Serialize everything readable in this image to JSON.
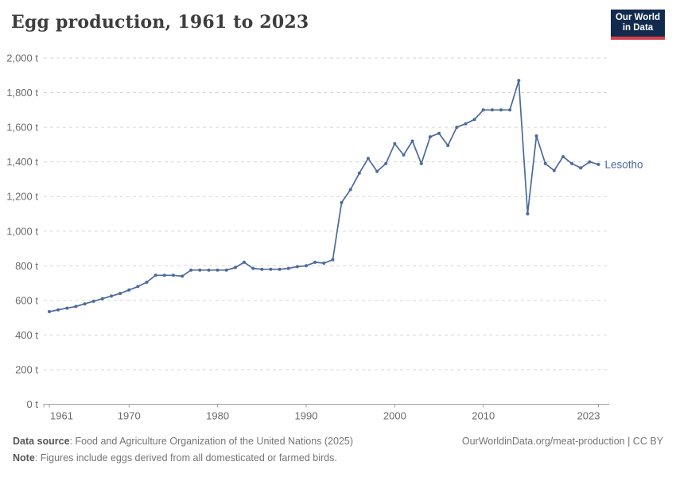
{
  "header": {
    "title": "Egg production, 1961 to 2023"
  },
  "logo": {
    "line1": "Our World",
    "line2": "in Data"
  },
  "chart_data": {
    "type": "line",
    "title": "Egg production, 1961 to 2023",
    "entity_label": "Lesotho",
    "unit": "t",
    "xlabel": "",
    "ylabel": "",
    "xlim": [
      1961,
      2023
    ],
    "ylim": [
      0,
      2000
    ],
    "grid": "horizontal-dashed",
    "legend_position": "inline-right",
    "x": [
      1961,
      1962,
      1963,
      1964,
      1965,
      1966,
      1967,
      1968,
      1969,
      1970,
      1971,
      1972,
      1973,
      1974,
      1975,
      1976,
      1977,
      1978,
      1979,
      1980,
      1981,
      1982,
      1983,
      1984,
      1985,
      1986,
      1987,
      1988,
      1989,
      1990,
      1991,
      1992,
      1993,
      1994,
      1995,
      1996,
      1997,
      1998,
      1999,
      2000,
      2001,
      2002,
      2003,
      2004,
      2005,
      2006,
      2007,
      2008,
      2009,
      2010,
      2011,
      2012,
      2013,
      2014,
      2015,
      2016,
      2017,
      2018,
      2019,
      2020,
      2021,
      2022,
      2023
    ],
    "series": [
      {
        "name": "Lesotho",
        "values": [
          535,
          545,
          555,
          565,
          580,
          595,
          610,
          625,
          640,
          660,
          680,
          705,
          745,
          745,
          745,
          740,
          775,
          775,
          775,
          775,
          775,
          790,
          820,
          785,
          780,
          780,
          780,
          785,
          795,
          800,
          820,
          815,
          835,
          1165,
          1240,
          1335,
          1420,
          1345,
          1390,
          1505,
          1440,
          1520,
          1390,
          1545,
          1565,
          1495,
          1600,
          1620,
          1645,
          1700,
          1700,
          1700,
          1700,
          1870,
          1100,
          1550,
          1390,
          1350,
          1430,
          1390,
          1365,
          1400,
          1385
        ]
      }
    ],
    "y_ticks": [
      {
        "value": 0,
        "label": "0 t"
      },
      {
        "value": 200,
        "label": "200 t"
      },
      {
        "value": 400,
        "label": "400 t"
      },
      {
        "value": 600,
        "label": "600 t"
      },
      {
        "value": 800,
        "label": "800 t"
      },
      {
        "value": 1000,
        "label": "1,000 t"
      },
      {
        "value": 1200,
        "label": "1,200 t"
      },
      {
        "value": 1400,
        "label": "1,400 t"
      },
      {
        "value": 1600,
        "label": "1,600 t"
      },
      {
        "value": 1800,
        "label": "1,800 t"
      },
      {
        "value": 2000,
        "label": "2,000 t"
      }
    ],
    "x_ticks": [
      {
        "value": 1961,
        "label": "1961"
      },
      {
        "value": 1970,
        "label": "1970"
      },
      {
        "value": 1980,
        "label": "1980"
      },
      {
        "value": 1990,
        "label": "1990"
      },
      {
        "value": 2000,
        "label": "2000"
      },
      {
        "value": 2010,
        "label": "2010"
      },
      {
        "value": 2023,
        "label": "2023"
      }
    ]
  },
  "footer": {
    "source_label": "Data source",
    "source_text": ": Food and Agriculture Organization of the United Nations (2025)",
    "note_label": "Note",
    "note_text": ": Figures include eggs derived from all domesticated or farmed birds.",
    "link": "OurWorldinData.org/meat-production | CC BY"
  },
  "colors": {
    "line": "#4c6a9c",
    "entity_label": "#4c6a9c",
    "grid": "#d6d6d6",
    "axis": "#a1a1a1",
    "tick_text": "#6b6b6b",
    "title": "#3d3d3d",
    "logo_bg": "#122a4e",
    "logo_red": "#d0414e"
  }
}
